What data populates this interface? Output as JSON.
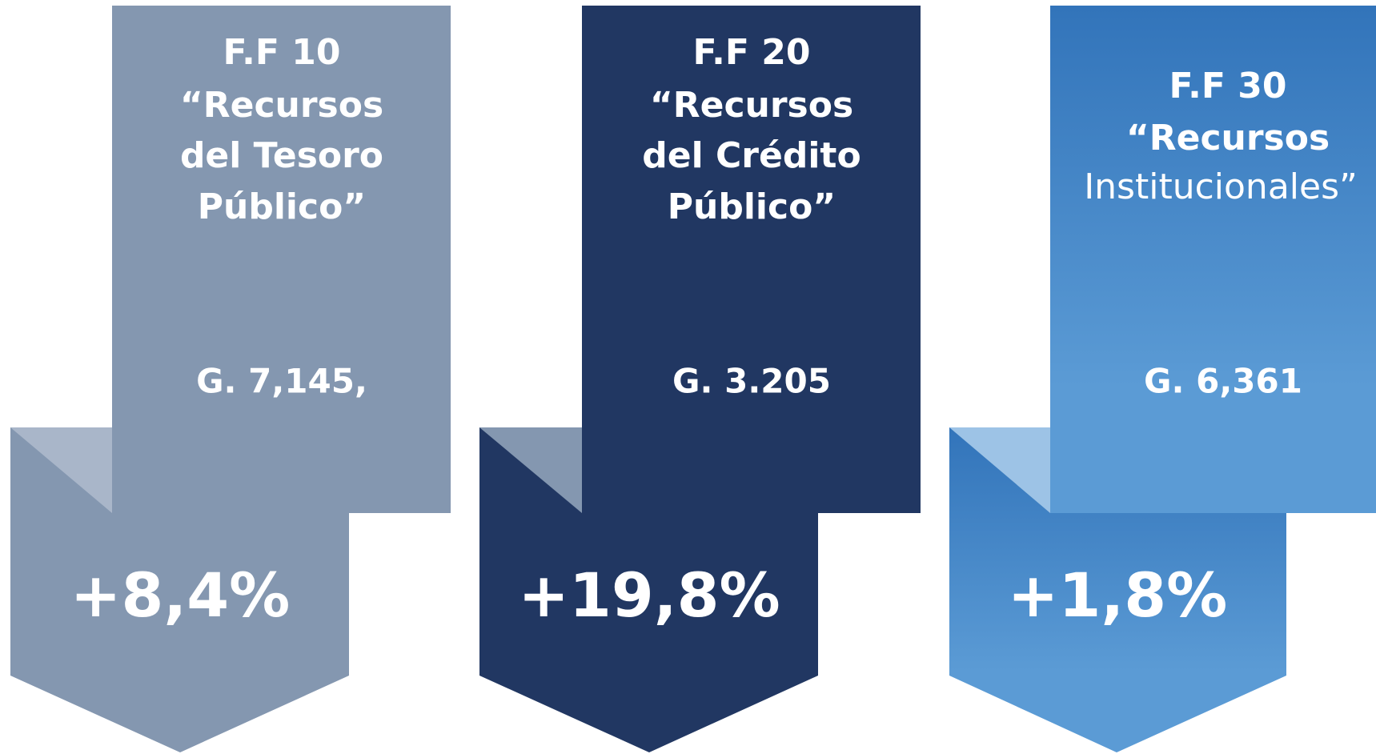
{
  "cards": [
    {
      "title": [
        "F.F 10",
        "“Recursos",
        "del Tesoro",
        "Público”"
      ],
      "amount": "G. 7,145,",
      "change": "+8,4%"
    },
    {
      "title": [
        "F.F 20",
        "“Recursos",
        "del Crédito",
        "Público”"
      ],
      "amount": "G. 3.205",
      "change": "+19,8%"
    },
    {
      "title": [
        "F.F 30",
        "“Recursos",
        "Institucionales”"
      ],
      "amount": "G. 6,361",
      "change": "+1,8%"
    }
  ]
}
